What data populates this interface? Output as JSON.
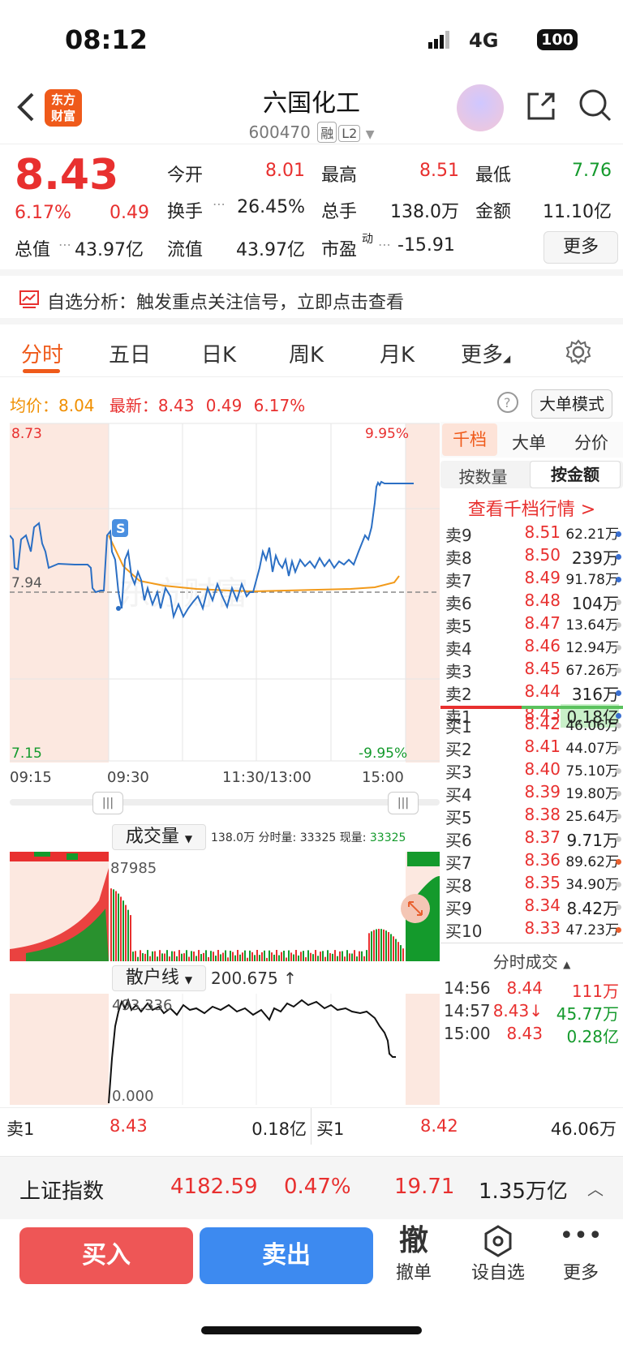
{
  "status": {
    "time": "08:12",
    "network": "4G",
    "battery": "100"
  },
  "header": {
    "logo_l1": "东方",
    "logo_l2": "财富",
    "name": "六国化工",
    "code": "600470",
    "tag1": "融",
    "tag2": "L2"
  },
  "quote": {
    "price": "8.43",
    "pct": "6.17%",
    "chg": "0.49",
    "open_l": "今开",
    "open": "8.01",
    "high_l": "最高",
    "high": "8.51",
    "low_l": "最低",
    "low": "7.76",
    "turn_l": "换手",
    "turn": "26.45%",
    "vol_l": "总手",
    "vol": "138.0万",
    "amt_l": "金额",
    "amt": "11.10亿",
    "mcap_l": "总值",
    "mcap": "43.97亿",
    "fmcap_l": "流值",
    "fmcap": "43.97亿",
    "pe_l": "市盈",
    "pe_sup": "动",
    "pe": "-15.91",
    "more": "更多"
  },
  "alert": {
    "text": "自选分析：触发重点关注信号，立即点击查看"
  },
  "tabs": [
    "分时",
    "五日",
    "日K",
    "周K",
    "月K",
    "更多"
  ],
  "infobar": {
    "avg_l": "均价：",
    "avg": "8.04",
    "last_l": "最新：",
    "last": "8.43",
    "chg": "0.49",
    "pct": "6.17%",
    "mode": "大单模式"
  },
  "chart_data": {
    "type": "line",
    "y_top": "8.73",
    "y_mid": "7.94",
    "y_bot": "7.15",
    "pct_top": "9.95%",
    "pct_bot": "-9.95%",
    "x_labels": [
      "09:15",
      "09:30",
      "11:30/13:00",
      "15:00"
    ],
    "marker": "S"
  },
  "volume": {
    "title": "成交量",
    "summary_total": "138.0万",
    "summary_mid_l": "分时量:",
    "summary_mid": "33325",
    "summary_cur_l": "现量:",
    "summary_cur": "33325",
    "peak": "87985"
  },
  "retail": {
    "title": "散户线",
    "value": "200.675 ↑",
    "top": "493.336",
    "bottom": "0.000"
  },
  "orderbook": {
    "tab1": "千档",
    "tab2": "大单",
    "tab3": "分价",
    "btn1": "按数量",
    "btn2": "按金额",
    "link": "查看千档行情 >",
    "asks": [
      [
        "卖9",
        "8.51",
        "62.21万"
      ],
      [
        "卖8",
        "8.50",
        "239万"
      ],
      [
        "卖7",
        "8.49",
        "91.78万"
      ],
      [
        "卖6",
        "8.48",
        "104万"
      ],
      [
        "卖5",
        "8.47",
        "13.64万"
      ],
      [
        "卖4",
        "8.46",
        "12.94万"
      ],
      [
        "卖3",
        "8.45",
        "67.26万"
      ],
      [
        "卖2",
        "8.44",
        "316万"
      ],
      [
        "卖1",
        "8.43",
        "0.18亿"
      ]
    ],
    "bids": [
      [
        "买1",
        "8.42",
        "46.06万"
      ],
      [
        "买2",
        "8.41",
        "44.07万"
      ],
      [
        "买3",
        "8.40",
        "75.10万"
      ],
      [
        "买4",
        "8.39",
        "19.80万"
      ],
      [
        "买5",
        "8.38",
        "25.64万"
      ],
      [
        "买6",
        "8.37",
        "9.71万"
      ],
      [
        "买7",
        "8.36",
        "89.62万"
      ],
      [
        "买8",
        "8.35",
        "34.90万"
      ],
      [
        "买9",
        "8.34",
        "8.42万"
      ],
      [
        "买10",
        "8.33",
        "47.23万"
      ]
    ],
    "ticks_title": "分时成交",
    "ticks": [
      [
        "14:56",
        "8.44",
        "111万"
      ],
      [
        "14:57",
        "8.43↓",
        "45.77万"
      ],
      [
        "15:00",
        "8.43",
        "0.28亿"
      ]
    ]
  },
  "bottom": {
    "s1_l": "卖1",
    "s1_p": "8.43",
    "s1_v": "0.18亿",
    "b1_l": "买1",
    "b1_p": "8.42",
    "b1_v": "46.06万"
  },
  "index": {
    "name": "上证指数",
    "value": "4182.59",
    "pct": "0.47%",
    "chg": "19.71",
    "amount": "1.35万亿"
  },
  "actions": {
    "buy": "买入",
    "sell": "卖出",
    "cancel_icon": "撤",
    "cancel": "撤单",
    "fav": "设自选",
    "more": "更多"
  }
}
